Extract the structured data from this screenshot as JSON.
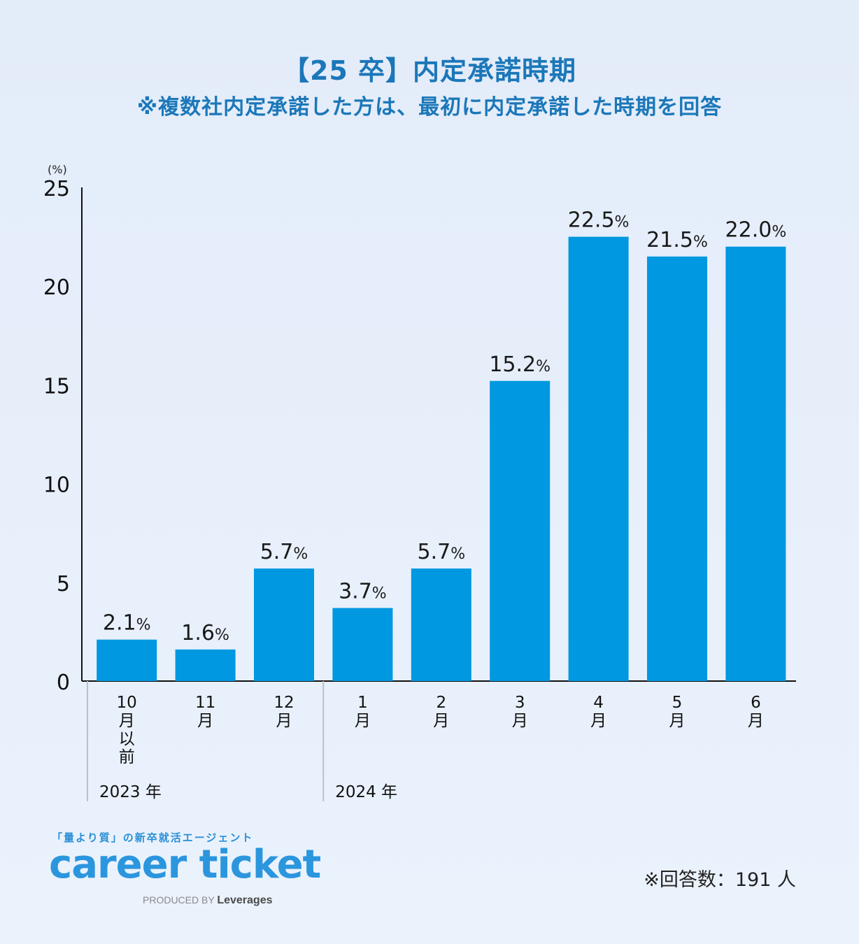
{
  "header": {
    "title": "【25 卒】内定承諾時期",
    "subtitle": "※複数社内定承諾した方は、最初に内定承諾した時期を回答"
  },
  "footer": {
    "brand_tagline": "「量より質」の新卒就活エージェント",
    "brand_logo": "career ticket",
    "produced_by": "PRODUCED BY",
    "produced_company": "Leverages",
    "respondents": "※回答数：191 人"
  },
  "colors": {
    "bar": "#0098e0",
    "title": "#1b77b9",
    "background": "#e6effb"
  },
  "chart_data": {
    "type": "bar",
    "ylabel": "(%)",
    "ylim": [
      0,
      25
    ],
    "yticks": [
      0,
      5,
      10,
      15,
      20,
      25
    ],
    "categories": [
      "10\n月\n以\n前",
      "11\n月",
      "12\n月",
      "1\n月",
      "2\n月",
      "3\n月",
      "4\n月",
      "5\n月",
      "6\n月"
    ],
    "values": [
      2.1,
      1.6,
      5.7,
      3.7,
      5.7,
      15.2,
      22.5,
      21.5,
      22.0
    ],
    "data_labels": [
      "2.1",
      "1.6",
      "5.7",
      "3.7",
      "5.7",
      "15.2",
      "22.5",
      "21.5",
      "22.0"
    ],
    "data_label_unit": "%",
    "year_groups": [
      {
        "label": "2023 年",
        "start": 0
      },
      {
        "label": "2024 年",
        "start": 3
      }
    ],
    "grid": false,
    "legend": "none"
  }
}
